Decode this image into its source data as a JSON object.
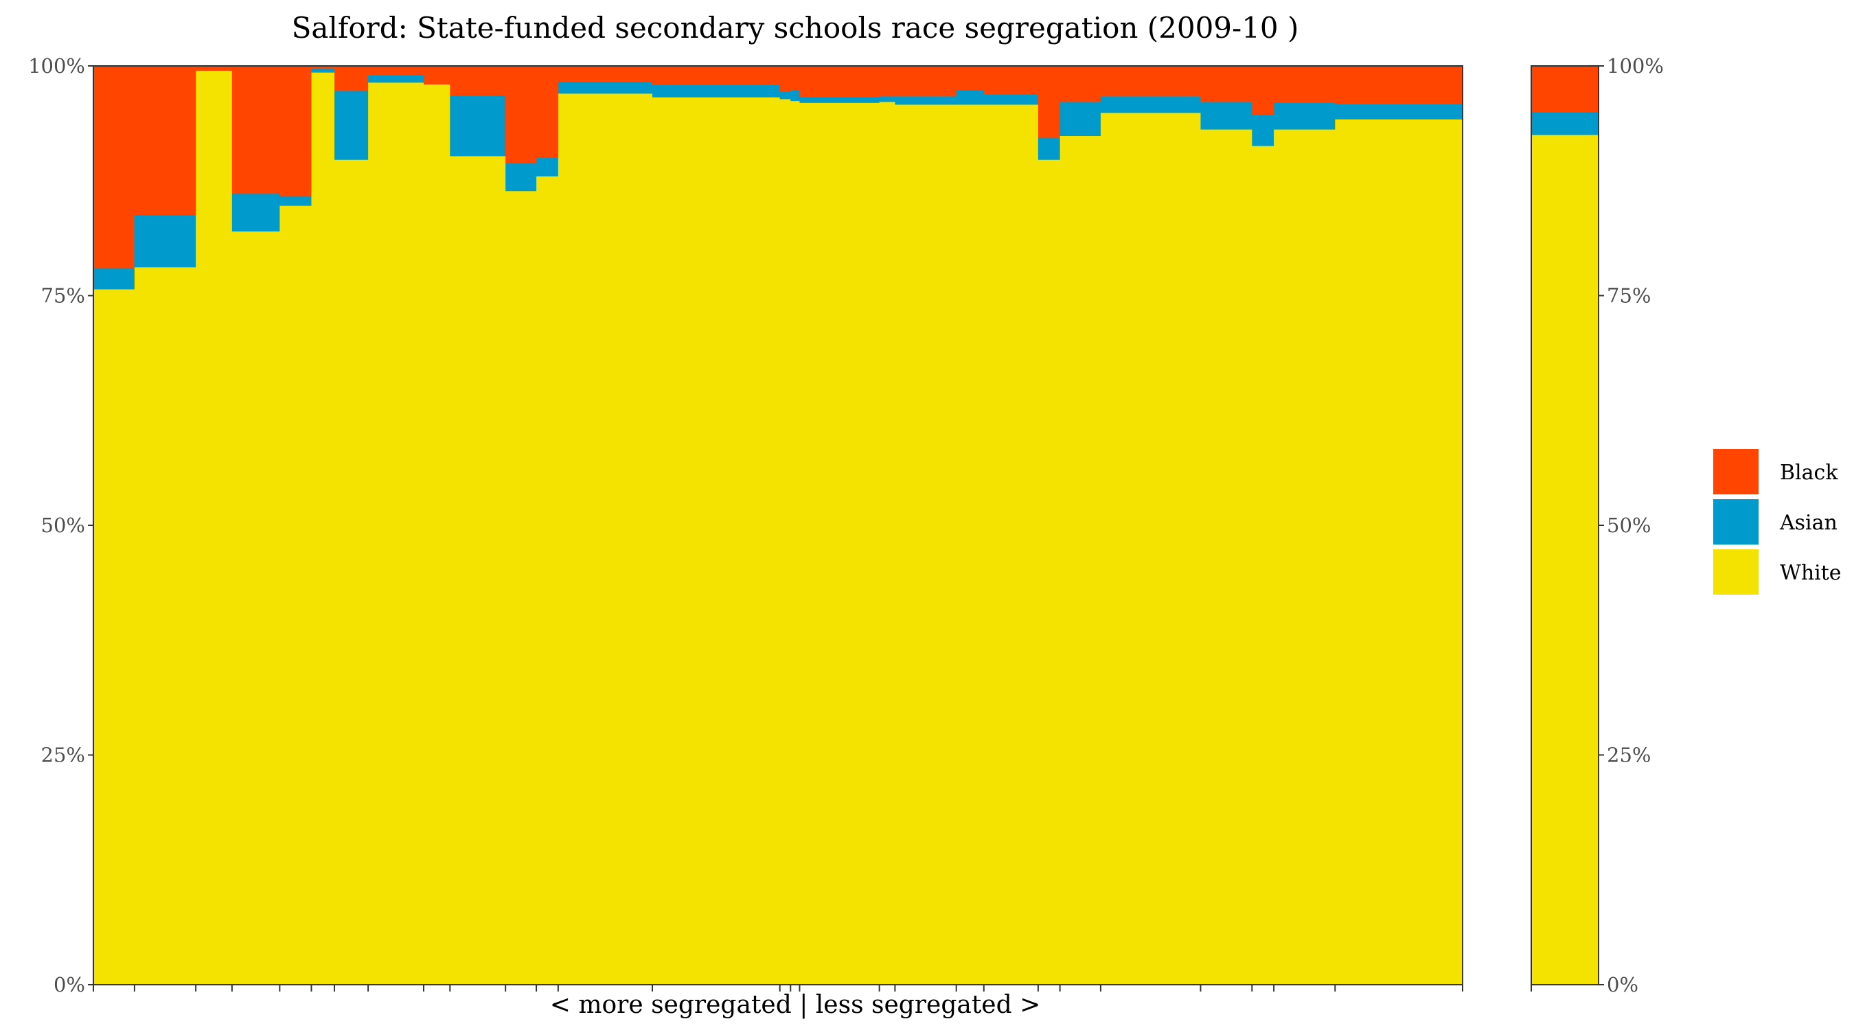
{
  "chart_data": {
    "type": "bar",
    "title": "Salford: State-funded secondary schools race segregation (2009-10 )",
    "xlabel": "< more segregated | less segregated >",
    "ylabel": "",
    "ylim": [
      0,
      100
    ],
    "y_ticks": [
      "0%",
      "25%",
      "50%",
      "75%",
      "100%"
    ],
    "legend": {
      "placement": "right",
      "entries": [
        {
          "name": "Black",
          "color": "#FF4500"
        },
        {
          "name": "Asian",
          "color": "#009ACD"
        },
        {
          "name": "White",
          "color": "#F4E300"
        }
      ]
    },
    "grid": false,
    "schools": [
      {
        "width": 1.0,
        "white": 75.7,
        "asian": 2.3,
        "black": 22.0
      },
      {
        "width": 1.49,
        "white": 78.1,
        "asian": 5.7,
        "black": 16.2
      },
      {
        "width": 0.88,
        "white": 99.5,
        "asian": 0.0,
        "black": 0.5
      },
      {
        "width": 1.16,
        "white": 82.0,
        "asian": 4.1,
        "black": 13.9
      },
      {
        "width": 0.77,
        "white": 84.8,
        "asian": 1.0,
        "black": 14.2
      },
      {
        "width": 0.56,
        "white": 99.3,
        "asian": 0.4,
        "black": 0.3
      },
      {
        "width": 0.82,
        "white": 89.8,
        "asian": 7.5,
        "black": 2.7
      },
      {
        "width": 1.35,
        "white": 98.2,
        "asian": 0.8,
        "black": 1.0
      },
      {
        "width": 0.64,
        "white": 98.0,
        "asian": 0.0,
        "black": 2.0
      },
      {
        "width": 1.35,
        "white": 90.2,
        "asian": 6.6,
        "black": 3.2
      },
      {
        "width": 0.75,
        "white": 86.4,
        "asian": 3.0,
        "black": 10.6
      },
      {
        "width": 0.53,
        "white": 88.0,
        "asian": 2.0,
        "black": 10.0
      },
      {
        "width": 2.29,
        "white": 97.0,
        "asian": 1.3,
        "black": 1.7
      },
      {
        "width": 3.1,
        "white": 96.6,
        "asian": 1.4,
        "black": 2.0
      },
      {
        "width": 0.26,
        "white": 96.4,
        "asian": 0.8,
        "black": 2.8
      },
      {
        "width": 0.22,
        "white": 96.2,
        "asian": 1.2,
        "black": 2.6
      },
      {
        "width": 1.94,
        "white": 96.0,
        "asian": 0.6,
        "black": 3.4
      },
      {
        "width": 0.38,
        "white": 96.1,
        "asian": 0.6,
        "black": 3.3
      },
      {
        "width": 1.49,
        "white": 95.8,
        "asian": 0.9,
        "black": 3.3
      },
      {
        "width": 0.67,
        "white": 95.8,
        "asian": 1.6,
        "black": 2.6
      },
      {
        "width": 1.32,
        "white": 95.8,
        "asian": 1.1,
        "black": 3.1
      },
      {
        "width": 0.53,
        "white": 89.8,
        "asian": 2.4,
        "black": 7.8
      },
      {
        "width": 0.99,
        "white": 92.4,
        "asian": 3.7,
        "black": 3.9
      },
      {
        "width": 2.43,
        "white": 94.9,
        "asian": 1.8,
        "black": 3.3
      },
      {
        "width": 1.25,
        "white": 93.1,
        "asian": 3.0,
        "black": 3.9
      },
      {
        "width": 0.53,
        "white": 91.3,
        "asian": 3.4,
        "black": 5.3
      },
      {
        "width": 1.49,
        "white": 93.1,
        "asian": 2.9,
        "black": 4.0
      },
      {
        "width": 3.1,
        "white": 94.2,
        "asian": 1.7,
        "black": 4.1
      }
    ],
    "summary": {
      "white": 92.5,
      "asian": 2.5,
      "black": 5.0
    }
  }
}
